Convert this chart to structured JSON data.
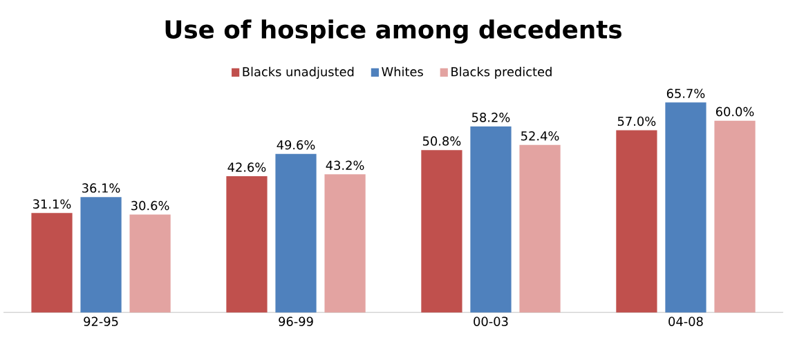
{
  "chart_data": {
    "type": "bar",
    "title": "Use of hospice among decedents",
    "categories": [
      "92-95",
      "96-99",
      "00-03",
      "04-08"
    ],
    "series": [
      {
        "name": "Blacks unadjusted",
        "color": "#c0504d",
        "values": [
          31.1,
          42.6,
          50.8,
          57.0
        ],
        "value_labels": [
          "31.1%",
          "42.6%",
          "50.8%",
          "57.0%"
        ]
      },
      {
        "name": "Whites",
        "color": "#4f81bd",
        "values": [
          36.1,
          49.6,
          58.2,
          65.7
        ],
        "value_labels": [
          "36.1%",
          "49.6%",
          "58.2%",
          "65.7%"
        ]
      },
      {
        "name": "Blacks predicted",
        "color": "#e3a3a1",
        "values": [
          30.6,
          43.2,
          52.4,
          60.0
        ],
        "value_labels": [
          "30.6%",
          "43.2%",
          "52.4%",
          "60.0%"
        ]
      }
    ],
    "relative": false,
    "legend": "top"
  }
}
